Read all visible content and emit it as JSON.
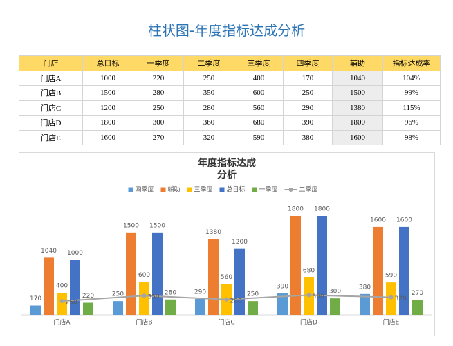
{
  "title": "柱状图-年度指标达成分析",
  "table": {
    "header": [
      "门店",
      "总目标",
      "一季度",
      "二季度",
      "三季度",
      "四季度",
      "辅助",
      "指标达成率"
    ],
    "rows": [
      [
        "门店A",
        1000,
        220,
        250,
        400,
        170,
        1040,
        "104%"
      ],
      [
        "门店B",
        1500,
        280,
        350,
        600,
        250,
        1500,
        "99%"
      ],
      [
        "门店C",
        1200,
        250,
        280,
        560,
        290,
        1380,
        "115%"
      ],
      [
        "门店D",
        1800,
        300,
        360,
        680,
        390,
        1800,
        "96%"
      ],
      [
        "门店E",
        1600,
        270,
        320,
        590,
        380,
        1600,
        "98%"
      ]
    ]
  },
  "chart_data": {
    "type": "bar",
    "title": "年度指标达成分析",
    "categories": [
      "门店A",
      "门店B",
      "门店C",
      "门店D",
      "门店E"
    ],
    "series": [
      {
        "name": "四季度",
        "color": "#5b9bd5",
        "values": [
          170,
          250,
          290,
          390,
          380
        ]
      },
      {
        "name": "辅助",
        "color": "#ed7d31",
        "values": [
          1040,
          1500,
          1380,
          1800,
          1600
        ]
      },
      {
        "name": "三季度",
        "color": "#ffc000",
        "values": [
          400,
          600,
          560,
          680,
          590
        ]
      },
      {
        "name": "总目标",
        "color": "#4472c4",
        "values": [
          1000,
          1500,
          1200,
          1800,
          1600
        ]
      },
      {
        "name": "一季度",
        "color": "#70ad47",
        "values": [
          220,
          280,
          250,
          300,
          270
        ]
      },
      {
        "name": "二季度",
        "color": "#a5a5a5",
        "type": "line",
        "values": [
          250,
          350,
          280,
          360,
          320
        ]
      }
    ],
    "legend": "top",
    "grid": false
  }
}
